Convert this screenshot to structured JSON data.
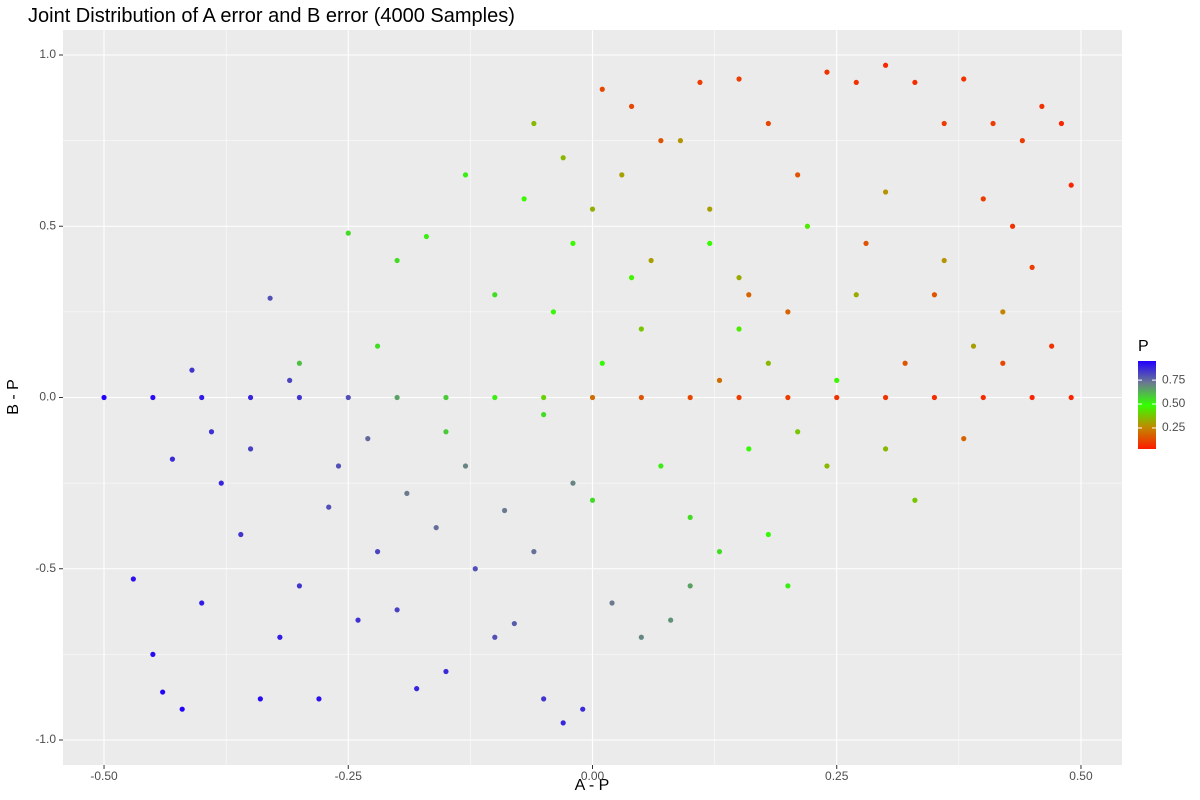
{
  "chart_data": {
    "type": "scatter",
    "title": "Joint Distribution of A error and B error (4000 Samples)",
    "x_label": "A - P",
    "y_label": "B - P",
    "xlim": [
      -0.542,
      0.542
    ],
    "ylim": [
      -1.073,
      1.073
    ],
    "xticks": [
      {
        "value": -0.5,
        "label": "-0.50"
      },
      -0.25,
      {
        "value": 0,
        "label": "0.00"
      },
      0.25,
      {
        "value": 0.5,
        "label": "0.50"
      }
    ],
    "yticks": [
      {
        "value": -1,
        "label": "-1.0"
      },
      -0.5,
      {
        "value": 0,
        "label": "0.0"
      },
      0.5,
      {
        "value": 1,
        "label": "1.0"
      }
    ],
    "grid": true,
    "color_scale": {
      "title": "P",
      "lim": [
        0.03,
        0.95
      ],
      "colors": [
        "#ff1a00",
        "#c08a00",
        "#33ff00",
        "#6b7a8f",
        "#2200ff"
      ],
      "ticks": [
        0.25,
        {
          "value": 0.5,
          "label": "0.50"
        },
        0.75
      ]
    },
    "x": [
      -0.47,
      -0.45,
      -0.44,
      -0.42,
      -0.4,
      -0.38,
      -0.36,
      -0.34,
      -0.33,
      -0.32,
      -0.3,
      -0.28,
      -0.26,
      -0.24,
      -0.22,
      -0.2,
      -0.18,
      -0.15,
      -0.12,
      -0.1,
      -0.08,
      -0.05,
      -0.03,
      -0.01,
      -0.43,
      -0.41,
      -0.39,
      -0.35,
      -0.31,
      -0.27,
      -0.23,
      -0.19,
      -0.16,
      -0.13,
      -0.09,
      -0.06,
      -0.02,
      0.02,
      0.05,
      0.08,
      0.1,
      -0.25,
      -0.2,
      -0.17,
      -0.13,
      -0.1,
      -0.07,
      -0.04,
      -0.02,
      0.01,
      0.04,
      0.07,
      0.1,
      0.13,
      0.16,
      0.18,
      0.2,
      0.12,
      0.15,
      0.22,
      0.25,
      -0.3,
      -0.22,
      -0.15,
      -0.05,
      0.0,
      -0.06,
      -0.03,
      0.0,
      0.03,
      0.06,
      0.09,
      0.12,
      0.15,
      0.18,
      0.21,
      0.24,
      0.27,
      0.3,
      0.33,
      0.36,
      0.39,
      0.42,
      0.3,
      0.05,
      0.01,
      0.04,
      0.07,
      0.11,
      0.15,
      0.18,
      0.21,
      0.24,
      0.27,
      0.3,
      0.33,
      0.36,
      0.38,
      0.41,
      0.44,
      0.46,
      0.48,
      0.49,
      0.45,
      0.42,
      0.4,
      0.35,
      0.32,
      0.28,
      0.2,
      0.16,
      0.13,
      0.43,
      0.47,
      0.38,
      -0.5,
      -0.45,
      -0.4,
      -0.35,
      -0.3,
      -0.25,
      -0.2,
      -0.15,
      -0.1,
      -0.05,
      0.0,
      0.05,
      0.1,
      0.15,
      0.2,
      0.25,
      0.3,
      0.35,
      0.4,
      0.45,
      0.49
    ],
    "series": [
      {
        "values": [
          -0.53,
          -0.75,
          -0.86,
          -0.91,
          -0.6,
          -0.25,
          -0.4,
          -0.88,
          0.29,
          -0.7,
          -0.55,
          -0.88,
          -0.2,
          -0.65,
          -0.45,
          -0.62,
          -0.85,
          -0.8,
          -0.5,
          -0.7,
          -0.66,
          -0.88,
          -0.95,
          -0.91,
          -0.18,
          0.08,
          -0.1,
          -0.15,
          0.05,
          -0.32,
          -0.12,
          -0.28,
          -0.38,
          -0.2,
          -0.33,
          -0.45,
          -0.25,
          -0.6,
          -0.7,
          -0.65,
          -0.55,
          0.48,
          0.4,
          0.47,
          0.65,
          0.3,
          0.58,
          0.25,
          0.45,
          0.1,
          0.35,
          -0.2,
          -0.35,
          -0.45,
          -0.15,
          -0.4,
          -0.55,
          0.45,
          0.2,
          0.5,
          0.05,
          0.1,
          0.15,
          -0.1,
          -0.05,
          -0.3,
          0.8,
          0.7,
          0.55,
          0.65,
          0.4,
          0.75,
          0.55,
          0.35,
          0.1,
          -0.1,
          -0.2,
          0.3,
          -0.15,
          -0.3,
          0.4,
          0.15,
          0.25,
          0.6,
          0.2,
          0.9,
          0.85,
          0.75,
          0.92,
          0.93,
          0.8,
          0.65,
          0.95,
          0.92,
          0.97,
          0.92,
          0.8,
          0.93,
          0.8,
          0.75,
          0.85,
          0.8,
          0.62,
          0.38,
          0.1,
          0.58,
          0.3,
          0.1,
          0.45,
          0.25,
          0.3,
          0.05,
          0.5,
          0.15,
          -0.12,
          0,
          0,
          0,
          0,
          0,
          0,
          0,
          0,
          0,
          0,
          0,
          0,
          0,
          0,
          0,
          0,
          0,
          0,
          0,
          0,
          0
        ],
        "p": [
          0.92,
          0.93,
          0.94,
          0.95,
          0.9,
          0.88,
          0.85,
          0.93,
          0.8,
          0.9,
          0.85,
          0.92,
          0.8,
          0.86,
          0.82,
          0.83,
          0.88,
          0.87,
          0.8,
          0.8,
          0.78,
          0.85,
          0.88,
          0.87,
          0.87,
          0.85,
          0.86,
          0.83,
          0.82,
          0.8,
          0.75,
          0.72,
          0.74,
          0.7,
          0.72,
          0.74,
          0.7,
          0.72,
          0.7,
          0.68,
          0.65,
          0.55,
          0.55,
          0.52,
          0.52,
          0.55,
          0.48,
          0.5,
          0.48,
          0.5,
          0.47,
          0.52,
          0.55,
          0.55,
          0.5,
          0.5,
          0.52,
          0.48,
          0.45,
          0.45,
          0.48,
          0.6,
          0.55,
          0.58,
          0.55,
          0.55,
          0.35,
          0.35,
          0.33,
          0.3,
          0.3,
          0.28,
          0.3,
          0.32,
          0.35,
          0.38,
          0.35,
          0.32,
          0.35,
          0.38,
          0.28,
          0.3,
          0.25,
          0.28,
          0.38,
          0.12,
          0.12,
          0.15,
          0.1,
          0.1,
          0.12,
          0.15,
          0.08,
          0.08,
          0.06,
          0.07,
          0.1,
          0.08,
          0.1,
          0.1,
          0.08,
          0.05,
          0.05,
          0.1,
          0.12,
          0.1,
          0.15,
          0.15,
          0.15,
          0.18,
          0.18,
          0.2,
          0.08,
          0.08,
          0.18,
          0.95,
          0.93,
          0.9,
          0.88,
          0.85,
          0.8,
          0.65,
          0.58,
          0.52,
          0.4,
          0.2,
          0.15,
          0.12,
          0.1,
          0.1,
          0.08,
          0.08,
          0.07,
          0.06,
          0.05,
          0.05
        ]
      }
    ]
  }
}
